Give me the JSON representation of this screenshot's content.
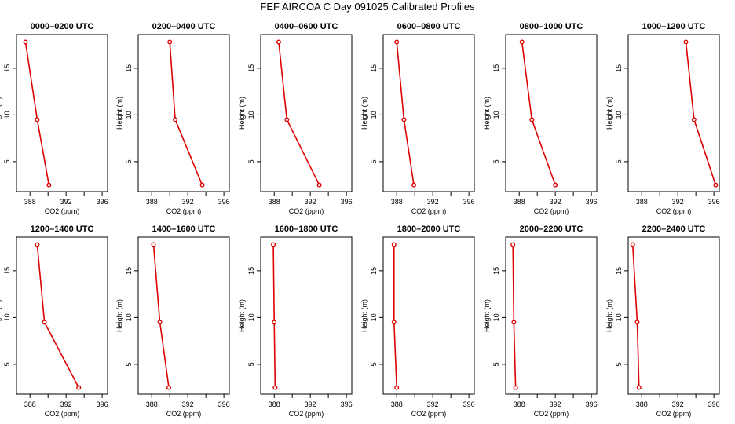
{
  "title": "FEF AIRCOA C  Day 091025  Calibrated Profiles",
  "colors": {
    "series": "#dd0000",
    "axis": "#000000",
    "background": "#ffffff"
  },
  "chart_data": [
    {
      "type": "line",
      "title": "0000–0200 UTC",
      "xlabel": "CO2 (ppm)",
      "ylabel": "Height (m)",
      "xlim": [
        386.5,
        396.6
      ],
      "ylim": [
        1.8,
        18.6
      ],
      "xticks": [
        388,
        392,
        396
      ],
      "xticks_minor": [
        390,
        394
      ],
      "yticks": [
        5,
        10,
        15
      ],
      "series": [
        {
          "name": "profile",
          "x": [
            387.5,
            388.8,
            390.1
          ],
          "y": [
            17.8,
            9.5,
            2.5
          ]
        }
      ]
    },
    {
      "type": "line",
      "title": "0200–0400 UTC",
      "xlabel": "CO2 (ppm)",
      "ylabel": "Height (m)",
      "xlim": [
        386.5,
        396.6
      ],
      "ylim": [
        1.8,
        18.6
      ],
      "xticks": [
        388,
        392,
        396
      ],
      "xticks_minor": [
        390,
        394
      ],
      "yticks": [
        5,
        10,
        15
      ],
      "series": [
        {
          "name": "profile",
          "x": [
            390.0,
            390.6,
            393.6
          ],
          "y": [
            17.8,
            9.5,
            2.5
          ]
        }
      ]
    },
    {
      "type": "line",
      "title": "0400–0600 UTC",
      "xlabel": "CO2 (ppm)",
      "ylabel": "Height (m)",
      "xlim": [
        386.5,
        396.6
      ],
      "ylim": [
        1.8,
        18.6
      ],
      "xticks": [
        388,
        392,
        396
      ],
      "xticks_minor": [
        390,
        394
      ],
      "yticks": [
        5,
        10,
        15
      ],
      "series": [
        {
          "name": "profile",
          "x": [
            388.5,
            389.4,
            393.0
          ],
          "y": [
            17.8,
            9.5,
            2.5
          ]
        }
      ]
    },
    {
      "type": "line",
      "title": "0600–0800 UTC",
      "xlabel": "CO2 (ppm)",
      "ylabel": "Height (m)",
      "xlim": [
        386.5,
        396.6
      ],
      "ylim": [
        1.8,
        18.6
      ],
      "xticks": [
        388,
        392,
        396
      ],
      "xticks_minor": [
        390,
        394
      ],
      "yticks": [
        5,
        10,
        15
      ],
      "series": [
        {
          "name": "profile",
          "x": [
            388.0,
            388.8,
            389.9
          ],
          "y": [
            17.8,
            9.5,
            2.5
          ]
        }
      ]
    },
    {
      "type": "line",
      "title": "0800–1000 UTC",
      "xlabel": "CO2 (ppm)",
      "ylabel": "Height (m)",
      "xlim": [
        386.5,
        396.6
      ],
      "ylim": [
        1.8,
        18.6
      ],
      "xticks": [
        388,
        392,
        396
      ],
      "xticks_minor": [
        390,
        394
      ],
      "yticks": [
        5,
        10,
        15
      ],
      "series": [
        {
          "name": "profile",
          "x": [
            388.3,
            389.4,
            392.0
          ],
          "y": [
            17.8,
            9.5,
            2.5
          ]
        }
      ]
    },
    {
      "type": "line",
      "title": "1000–1200 UTC",
      "xlabel": "CO2 (ppm)",
      "ylabel": "Height (m)",
      "xlim": [
        386.5,
        396.6
      ],
      "ylim": [
        1.8,
        18.6
      ],
      "xticks": [
        388,
        392,
        396
      ],
      "xticks_minor": [
        390,
        394
      ],
      "yticks": [
        5,
        10,
        15
      ],
      "series": [
        {
          "name": "profile",
          "x": [
            392.9,
            393.8,
            396.2
          ],
          "y": [
            17.8,
            9.5,
            2.5
          ]
        }
      ]
    },
    {
      "type": "line",
      "title": "1200–1400 UTC",
      "xlabel": "CO2 (ppm)",
      "ylabel": "Height (m)",
      "xlim": [
        386.5,
        396.6
      ],
      "ylim": [
        1.8,
        18.6
      ],
      "xticks": [
        388,
        392,
        396
      ],
      "xticks_minor": [
        390,
        394
      ],
      "yticks": [
        5,
        10,
        15
      ],
      "series": [
        {
          "name": "profile",
          "x": [
            388.8,
            389.6,
            393.4
          ],
          "y": [
            17.8,
            9.5,
            2.5
          ]
        }
      ]
    },
    {
      "type": "line",
      "title": "1400–1600 UTC",
      "xlabel": "CO2 (ppm)",
      "ylabel": "Height (m)",
      "xlim": [
        386.5,
        396.6
      ],
      "ylim": [
        1.8,
        18.6
      ],
      "xticks": [
        388,
        392,
        396
      ],
      "xticks_minor": [
        390,
        394
      ],
      "yticks": [
        5,
        10,
        15
      ],
      "series": [
        {
          "name": "profile",
          "x": [
            388.2,
            388.9,
            389.9
          ],
          "y": [
            17.8,
            9.5,
            2.5
          ]
        }
      ]
    },
    {
      "type": "line",
      "title": "1600–1800 UTC",
      "xlabel": "CO2 (ppm)",
      "ylabel": "Height (m)",
      "xlim": [
        386.5,
        396.6
      ],
      "ylim": [
        1.8,
        18.6
      ],
      "xticks": [
        388,
        392,
        396
      ],
      "xticks_minor": [
        390,
        394
      ],
      "yticks": [
        5,
        10,
        15
      ],
      "series": [
        {
          "name": "profile",
          "x": [
            387.9,
            388.0,
            388.1
          ],
          "y": [
            17.8,
            9.5,
            2.5
          ]
        }
      ]
    },
    {
      "type": "line",
      "title": "1800–2000 UTC",
      "xlabel": "CO2 (ppm)",
      "ylabel": "Height (m)",
      "xlim": [
        386.5,
        396.6
      ],
      "ylim": [
        1.8,
        18.6
      ],
      "xticks": [
        388,
        392,
        396
      ],
      "xticks_minor": [
        390,
        394
      ],
      "yticks": [
        5,
        10,
        15
      ],
      "series": [
        {
          "name": "profile",
          "x": [
            387.7,
            387.7,
            388.0
          ],
          "y": [
            17.8,
            9.5,
            2.5
          ]
        }
      ]
    },
    {
      "type": "line",
      "title": "2000–2200 UTC",
      "xlabel": "CO2 (ppm)",
      "ylabel": "Height (m)",
      "xlim": [
        386.5,
        396.6
      ],
      "ylim": [
        1.8,
        18.6
      ],
      "xticks": [
        388,
        392,
        396
      ],
      "xticks_minor": [
        390,
        394
      ],
      "yticks": [
        5,
        10,
        15
      ],
      "series": [
        {
          "name": "profile",
          "x": [
            387.3,
            387.4,
            387.6
          ],
          "y": [
            17.8,
            9.5,
            2.5
          ]
        }
      ]
    },
    {
      "type": "line",
      "title": "2200–2400 UTC",
      "xlabel": "CO2 (ppm)",
      "ylabel": "Height (m)",
      "xlim": [
        386.5,
        396.6
      ],
      "ylim": [
        1.8,
        18.6
      ],
      "xticks": [
        388,
        392,
        396
      ],
      "xticks_minor": [
        390,
        394
      ],
      "yticks": [
        5,
        10,
        15
      ],
      "series": [
        {
          "name": "profile",
          "x": [
            387.0,
            387.5,
            387.7
          ],
          "y": [
            17.8,
            9.5,
            2.5
          ]
        }
      ]
    }
  ]
}
